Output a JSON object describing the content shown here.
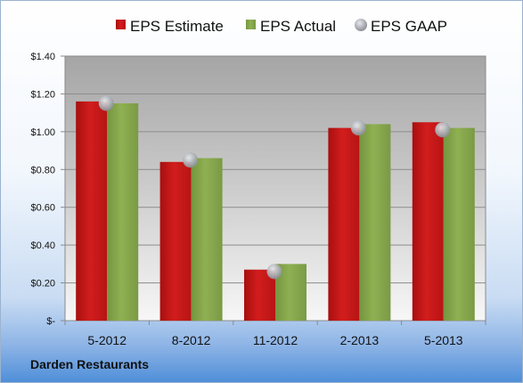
{
  "company": "Darden Restaurants",
  "colors": {
    "estimate": "#c91818",
    "actual": "#87a84a",
    "gaap": "#b4b8bd"
  },
  "chart_data": {
    "type": "bar",
    "categories": [
      "5-2012",
      "8-2012",
      "11-2012",
      "2-2013",
      "5-2013"
    ],
    "series": [
      {
        "name": "EPS Estimate",
        "values": [
          1.16,
          0.84,
          0.27,
          1.02,
          1.05
        ]
      },
      {
        "name": "EPS Actual",
        "values": [
          1.15,
          0.86,
          0.3,
          1.04,
          1.02
        ]
      },
      {
        "name": "EPS GAAP",
        "marker": "circle",
        "values": [
          1.15,
          0.85,
          0.26,
          1.02,
          1.01
        ]
      }
    ],
    "ylim": [
      0,
      1.4
    ],
    "yticks": [
      0,
      0.2,
      0.4,
      0.6,
      0.8,
      1.0,
      1.2,
      1.4
    ],
    "ytick_labels": [
      "$-",
      "$0.20",
      "$0.40",
      "$0.60",
      "$0.80",
      "$1.00",
      "$1.20",
      "$1.40"
    ],
    "grid": true,
    "legend": "top"
  }
}
